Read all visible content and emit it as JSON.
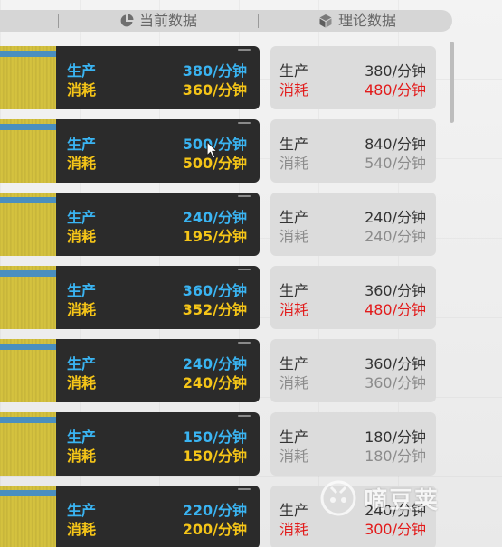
{
  "header": {
    "current_label": "当前数据",
    "current_icon": "pie-chart-icon",
    "theory_label": "理论数据",
    "theory_icon": "cube-icon"
  },
  "colors": {
    "production_current": "#3ab4f2",
    "consumption_current": "#f5c518",
    "theory_text": "#333333",
    "theory_muted": "#8b8b8b",
    "theory_deficit": "#e21b1b"
  },
  "rows": [
    {
      "current": {
        "prod_label": "生产",
        "prod_value": "380/分钟",
        "cons_label": "消耗",
        "cons_value": "360/分钟"
      },
      "theory": {
        "prod_label": "生产",
        "prod_value": "380/分钟",
        "cons_label": "消耗",
        "cons_value": "480/分钟",
        "cons_state": "deficit"
      }
    },
    {
      "current": {
        "prod_label": "生产",
        "prod_value": "500/分钟",
        "cons_label": "消耗",
        "cons_value": "500/分钟"
      },
      "theory": {
        "prod_label": "生产",
        "prod_value": "840/分钟",
        "cons_label": "消耗",
        "cons_value": "540/分钟",
        "cons_state": "normal"
      }
    },
    {
      "current": {
        "prod_label": "生产",
        "prod_value": "240/分钟",
        "cons_label": "消耗",
        "cons_value": "195/分钟"
      },
      "theory": {
        "prod_label": "生产",
        "prod_value": "240/分钟",
        "cons_label": "消耗",
        "cons_value": "240/分钟",
        "cons_state": "normal"
      }
    },
    {
      "current": {
        "prod_label": "生产",
        "prod_value": "360/分钟",
        "cons_label": "消耗",
        "cons_value": "352/分钟"
      },
      "theory": {
        "prod_label": "生产",
        "prod_value": "360/分钟",
        "cons_label": "消耗",
        "cons_value": "480/分钟",
        "cons_state": "deficit"
      }
    },
    {
      "current": {
        "prod_label": "生产",
        "prod_value": "240/分钟",
        "cons_label": "消耗",
        "cons_value": "240/分钟"
      },
      "theory": {
        "prod_label": "生产",
        "prod_value": "360/分钟",
        "cons_label": "消耗",
        "cons_value": "360/分钟",
        "cons_state": "normal"
      }
    },
    {
      "current": {
        "prod_label": "生产",
        "prod_value": "150/分钟",
        "cons_label": "消耗",
        "cons_value": "150/分钟"
      },
      "theory": {
        "prod_label": "生产",
        "prod_value": "180/分钟",
        "cons_label": "消耗",
        "cons_value": "180/分钟",
        "cons_state": "normal"
      }
    },
    {
      "current": {
        "prod_label": "生产",
        "prod_value": "220/分钟",
        "cons_label": "消耗",
        "cons_value": "200/分钟"
      },
      "theory": {
        "prod_label": "生产",
        "prod_value": "240/分钟",
        "cons_label": "消耗",
        "cons_value": "300/分钟",
        "cons_state": "deficit"
      }
    }
  ],
  "watermark": {
    "text": "嘀豆荚"
  }
}
